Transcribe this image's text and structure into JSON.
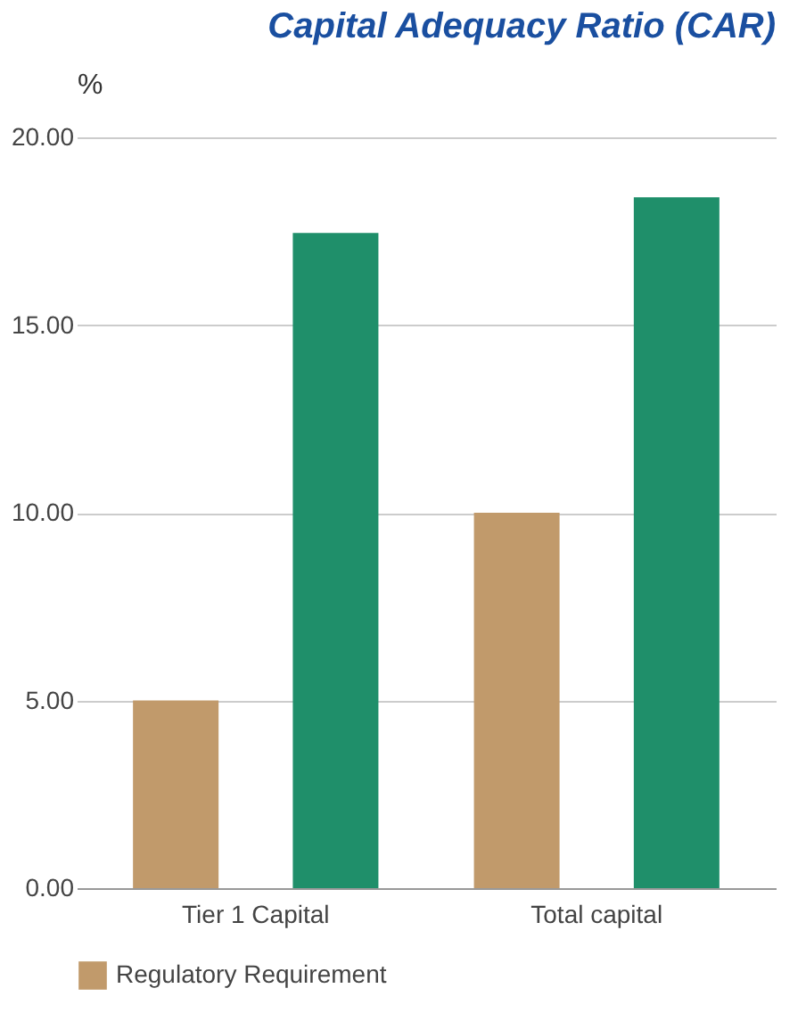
{
  "chart_data": {
    "type": "bar",
    "title": "Capital Adequacy Ratio (CAR)",
    "ylabel": "%",
    "categories": [
      "Tier 1 Capital",
      "Total capital"
    ],
    "series": [
      {
        "name": "Regulatory Requirement",
        "color": "#c19a6b",
        "values": [
          5.0,
          10.0
        ]
      },
      {
        "color": "#1f8f6a",
        "values": [
          17.45,
          18.4
        ]
      }
    ],
    "ylim": [
      0,
      20
    ],
    "yticks": [
      {
        "value": 0,
        "label": "0.00"
      },
      {
        "value": 5,
        "label": "5.00"
      },
      {
        "value": 10,
        "label": "10.00"
      },
      {
        "value": 15,
        "label": "15.00"
      },
      {
        "value": 20,
        "label": "20.00"
      }
    ],
    "grid": "y",
    "legend": "bottom"
  }
}
